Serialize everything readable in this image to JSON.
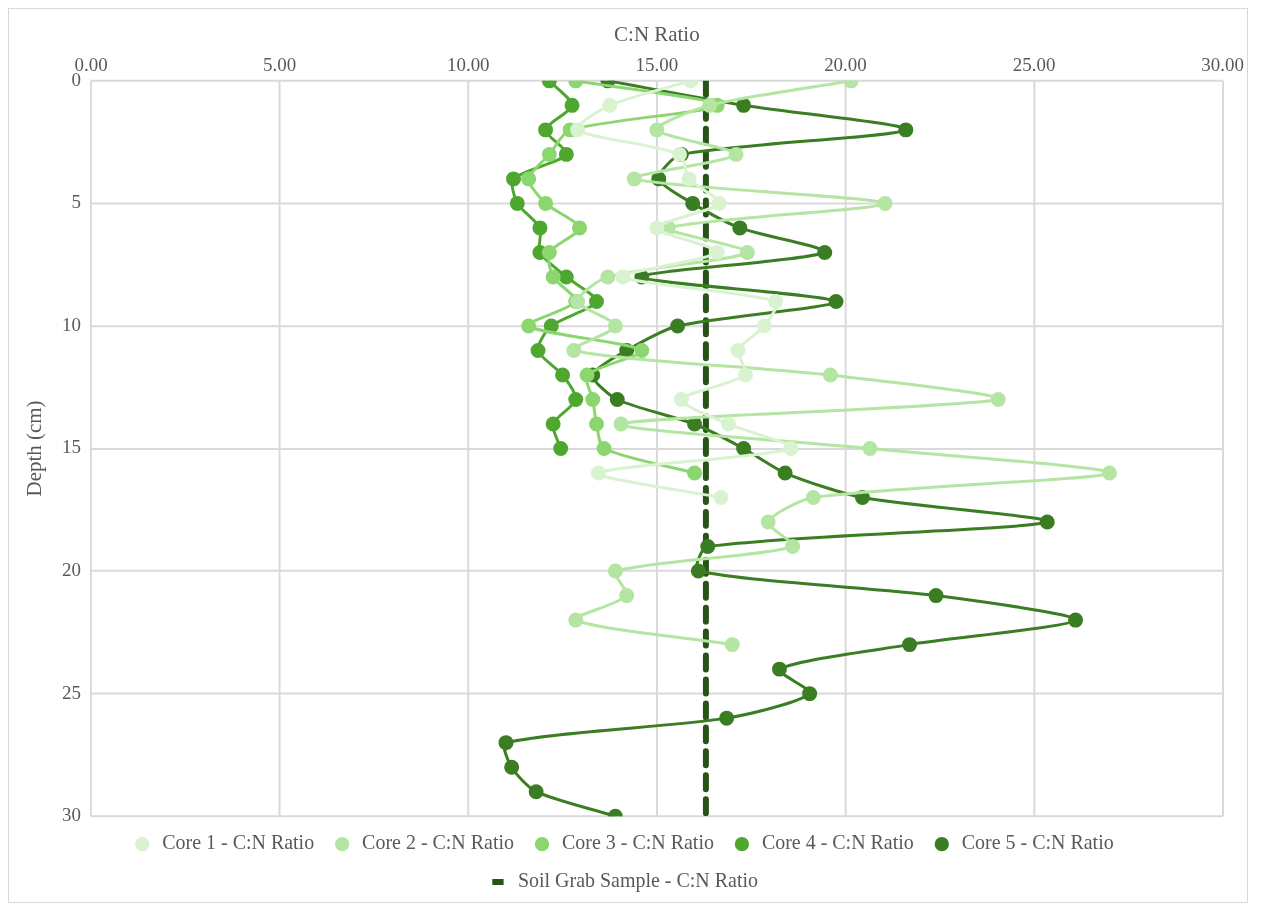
{
  "chart_data": {
    "type": "line",
    "xlabel": "C:N Ratio",
    "ylabel": "Depth (cm)",
    "xlim": [
      0,
      30
    ],
    "xticks": [
      {
        "value": 0,
        "label": "0.00"
      },
      {
        "value": 5,
        "label": "5.00"
      },
      {
        "value": 10,
        "label": "10.00"
      },
      {
        "value": 15,
        "label": "15.00"
      },
      {
        "value": 20,
        "label": "20.00"
      },
      {
        "value": 25,
        "label": "25.00"
      },
      {
        "value": 30,
        "label": "30.00"
      }
    ],
    "ylim": [
      30,
      0
    ],
    "yticks": [
      0,
      5,
      10,
      15,
      20,
      25,
      30
    ],
    "grid": true,
    "legend": "bottom",
    "marker": "circle",
    "series": [
      {
        "name": "Core 1 - C:N Ratio",
        "color": "#d9f2d0",
        "x": [
          15.9,
          13.75,
          12.9,
          15.6,
          15.85,
          16.65,
          15.0,
          16.6,
          14.1,
          18.15,
          17.85,
          17.15,
          17.35,
          15.65,
          16.9,
          18.55,
          13.45,
          16.7
        ],
        "values": [
          0,
          1,
          2,
          3,
          4,
          5,
          6,
          7,
          8,
          9,
          10,
          11,
          12,
          13,
          14,
          15,
          16,
          17
        ]
      },
      {
        "name": "Core 2 - C:N Ratio",
        "color": "#b4e5a2",
        "x": [
          20.15,
          16.4,
          15.0,
          17.1,
          14.4,
          21.05,
          15.3,
          17.4,
          13.7,
          12.9,
          13.9,
          12.8,
          19.6,
          24.05,
          14.05,
          20.65,
          27.0,
          19.15,
          17.95,
          18.6,
          13.9,
          14.2,
          12.85,
          17.0
        ],
        "values": [
          0,
          1,
          2,
          3,
          4,
          5,
          6,
          7,
          8,
          9,
          10,
          11,
          12,
          13,
          14,
          15,
          16,
          17,
          18,
          19,
          20,
          21,
          22,
          23
        ]
      },
      {
        "name": "Core 3 - C:N Ratio",
        "color": "#8cd66f",
        "x": [
          12.85,
          16.6,
          12.7,
          12.15,
          11.6,
          12.05,
          12.95,
          12.15,
          12.25,
          12.85,
          11.6,
          14.6,
          13.15,
          13.3,
          13.4,
          13.6,
          16.0
        ],
        "values": [
          0,
          1,
          2,
          3,
          4,
          5,
          6,
          7,
          8,
          9,
          10,
          11,
          12,
          13,
          14,
          15,
          16
        ]
      },
      {
        "name": "Core 4 - C:N Ratio",
        "color": "#4ea72e",
        "x": [
          12.15,
          12.75,
          12.05,
          12.6,
          11.2,
          11.3,
          11.9,
          11.9,
          12.6,
          13.4,
          12.2,
          11.85,
          12.5,
          12.85,
          12.25,
          12.45
        ],
        "values": [
          0,
          1,
          2,
          3,
          4,
          5,
          6,
          7,
          8,
          9,
          10,
          11,
          12,
          13,
          14,
          15
        ]
      },
      {
        "name": "Core 5 - C:N Ratio",
        "color": "#3b7d23",
        "x": [
          13.7,
          17.3,
          21.6,
          15.65,
          15.05,
          15.95,
          17.2,
          19.45,
          14.6,
          19.75,
          15.55,
          14.2,
          13.3,
          13.95,
          16.0,
          17.3,
          18.4,
          20.45,
          25.35,
          16.35,
          16.1,
          22.4,
          26.1,
          21.7,
          18.25,
          19.05,
          16.85,
          11.0,
          11.15,
          11.8,
          13.9
        ],
        "values": [
          0,
          1,
          2,
          3,
          4,
          5,
          6,
          7,
          8,
          9,
          10,
          11,
          12,
          13,
          14,
          15,
          16,
          17,
          18,
          19,
          20,
          21,
          22,
          23,
          24,
          25,
          26,
          27,
          28,
          29,
          30
        ]
      },
      {
        "name": "Soil Grab Sample - C:N Ratio",
        "color": "#275317",
        "x": [
          16.3,
          16.3
        ],
        "values": [
          0,
          30
        ],
        "marker": "none",
        "line_style": "dashed"
      }
    ]
  }
}
